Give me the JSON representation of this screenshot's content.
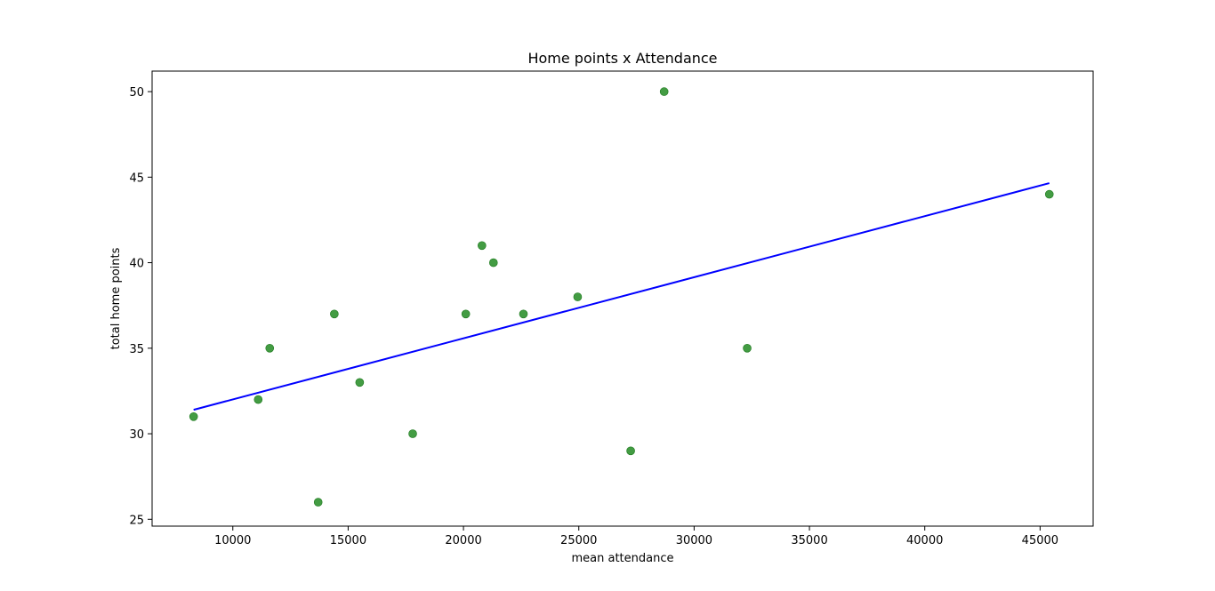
{
  "chart_data": {
    "type": "scatter",
    "title": "Home points x Attendance",
    "xlabel": "mean attendance",
    "ylabel": "total home points",
    "xlim": [
      6500,
      47300
    ],
    "ylim": [
      24.6,
      51.2
    ],
    "xticks": [
      10000,
      15000,
      20000,
      25000,
      30000,
      35000,
      40000,
      45000
    ],
    "yticks": [
      25,
      30,
      35,
      40,
      45,
      50
    ],
    "grid": false,
    "points": [
      {
        "x": 8300,
        "y": 31
      },
      {
        "x": 11100,
        "y": 32
      },
      {
        "x": 11600,
        "y": 35
      },
      {
        "x": 13700,
        "y": 26
      },
      {
        "x": 14400,
        "y": 37
      },
      {
        "x": 15500,
        "y": 33
      },
      {
        "x": 17800,
        "y": 30
      },
      {
        "x": 20100,
        "y": 37
      },
      {
        "x": 20800,
        "y": 41
      },
      {
        "x": 21300,
        "y": 40
      },
      {
        "x": 22600,
        "y": 37
      },
      {
        "x": 24950,
        "y": 38
      },
      {
        "x": 27250,
        "y": 29
      },
      {
        "x": 28700,
        "y": 50
      },
      {
        "x": 32300,
        "y": 35
      },
      {
        "x": 45400,
        "y": 44
      }
    ],
    "trendline": {
      "x": [
        8300,
        45400
      ],
      "y": [
        31.4,
        44.65
      ]
    },
    "colors": {
      "points": "#228B22",
      "trendline": "#0000FF",
      "axes": "#000000"
    }
  }
}
